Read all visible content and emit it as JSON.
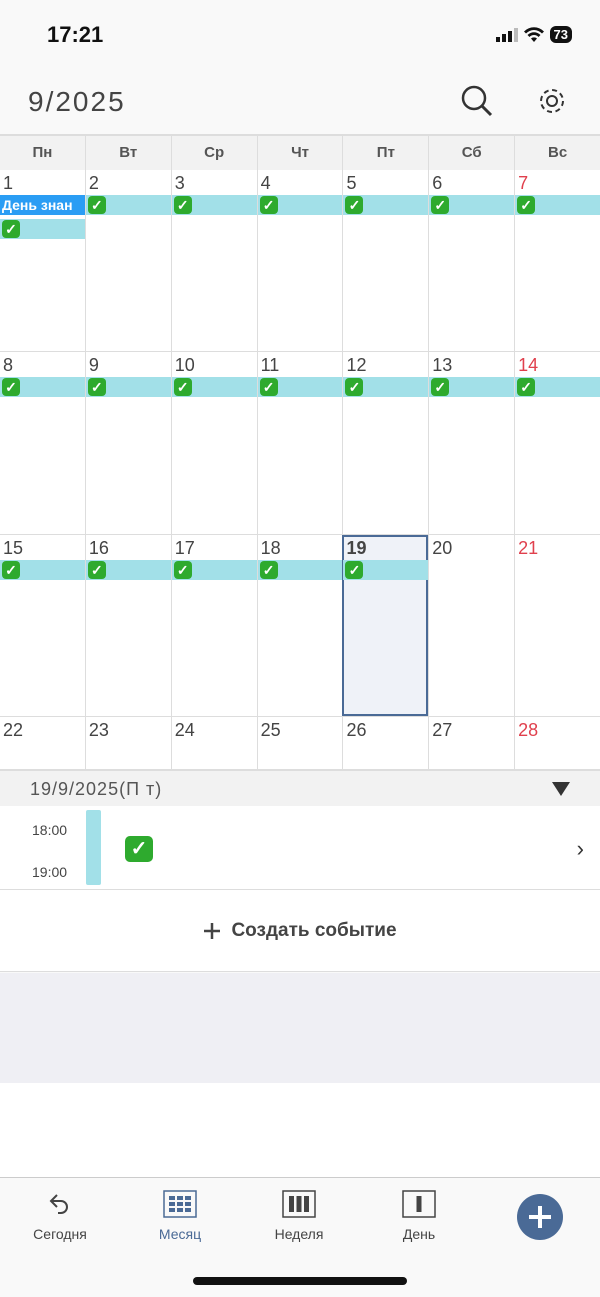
{
  "status": {
    "time": "17:21",
    "battery": "73"
  },
  "header": {
    "title": "9/2025",
    "search_icon": "search-icon",
    "settings_icon": "gear-icon"
  },
  "weekdays": [
    "Пн",
    "Вт",
    "Ср",
    "Чт",
    "Пт",
    "Сб",
    "Вс"
  ],
  "weeks": [
    {
      "days": [
        1,
        2,
        3,
        4,
        5,
        6,
        7
      ],
      "events": [
        true,
        true,
        true,
        true,
        true,
        true,
        true
      ]
    },
    {
      "days": [
        8,
        9,
        10,
        11,
        12,
        13,
        14
      ],
      "events": [
        true,
        true,
        true,
        true,
        true,
        true,
        true
      ]
    },
    {
      "days": [
        15,
        16,
        17,
        18,
        19,
        20,
        21
      ],
      "events": [
        true,
        true,
        true,
        true,
        true,
        false,
        false
      ]
    },
    {
      "days": [
        22,
        23,
        24,
        25,
        26,
        27,
        28
      ],
      "events": [
        false,
        false,
        false,
        false,
        false,
        false,
        false
      ]
    }
  ],
  "holiday": {
    "day": 1,
    "label": "День знан"
  },
  "today": 19,
  "event_emoji": "✓",
  "colors": {
    "event": "#a2e0e8",
    "holiday": "#2a9df4",
    "accent": "#4a6a96",
    "sunday": "#e0404d"
  },
  "detail": {
    "date": "19/9/2025(П т)",
    "start": "18:00",
    "end": "19:00"
  },
  "create_label": "Создать событие",
  "tabs": [
    {
      "label": "Сегодня"
    },
    {
      "label": "Месяц",
      "active": true
    },
    {
      "label": "Неделя"
    },
    {
      "label": "День"
    }
  ]
}
